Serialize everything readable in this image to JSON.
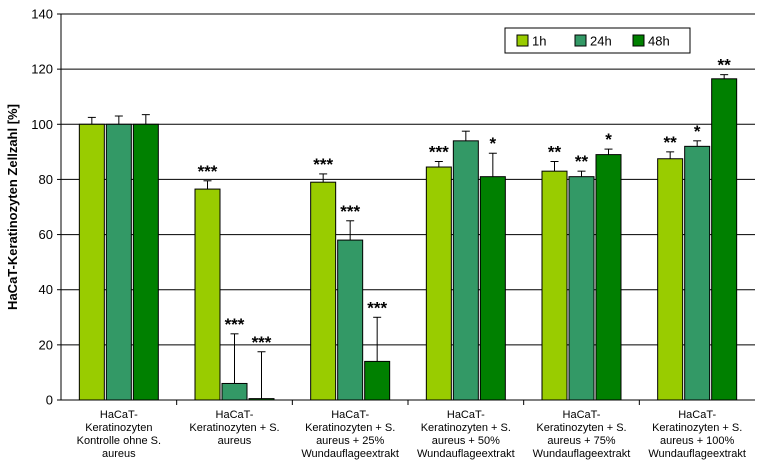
{
  "chart_data": {
    "type": "bar",
    "title": "",
    "xlabel": "",
    "ylabel": "HaCaT-Keratinozyten Zellzahl [%]",
    "ylim": [
      0,
      140
    ],
    "yticks": [
      0,
      20,
      40,
      60,
      80,
      100,
      120,
      140
    ],
    "grid": true,
    "legend_position": "top-right",
    "categories": [
      [
        "HaCaT-",
        "Keratinozyten",
        "Kontrolle ohne S.",
        "aureus"
      ],
      [
        "HaCaT-",
        "Keratinozyten + S.",
        "aureus"
      ],
      [
        "HaCaT-",
        "Keratinozyten + S.",
        "aureus + 25%",
        "Wundauflageextrakt"
      ],
      [
        "HaCaT-",
        "Keratinozyten + S.",
        "aureus + 50%",
        "Wundauflageextrakt"
      ],
      [
        "HaCaT-",
        "Keratinozyten + S.",
        "aureus + 75%",
        "Wundauflageextrakt"
      ],
      [
        "HaCaT-",
        "Keratinozyten + S.",
        "aureus + 100%",
        "Wundauflageextrakt"
      ]
    ],
    "series": [
      {
        "name": "1h",
        "color": "#99cc00",
        "values": [
          100,
          76.5,
          79,
          84.5,
          83,
          87.5
        ],
        "errors": [
          2.5,
          3,
          3,
          2,
          3.5,
          2.5
        ],
        "significance": [
          "",
          "***",
          "***",
          "***",
          "**",
          "**"
        ]
      },
      {
        "name": "24h",
        "color": "#339966",
        "values": [
          100,
          6,
          58,
          94,
          81,
          92
        ],
        "errors": [
          3,
          18,
          7,
          3.5,
          2,
          2
        ],
        "significance": [
          "",
          "***",
          "***",
          "",
          "**",
          "*"
        ]
      },
      {
        "name": "48h",
        "color": "#008000",
        "values": [
          100,
          0.5,
          14,
          81,
          89,
          116.5
        ],
        "errors": [
          3.5,
          17,
          16,
          8.5,
          2,
          1.5
        ],
        "significance": [
          "",
          "***",
          "***",
          "*",
          "*",
          "**"
        ]
      }
    ]
  }
}
